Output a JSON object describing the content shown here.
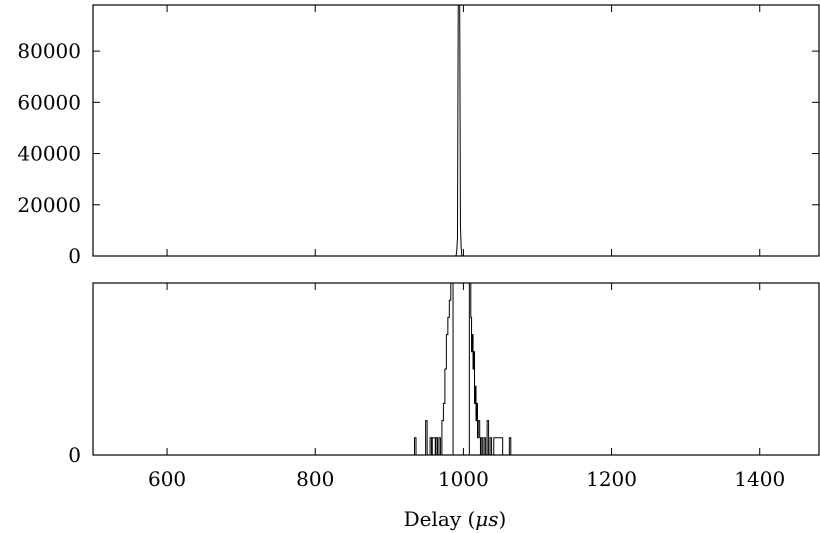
{
  "chart_data": [
    {
      "type": "line",
      "panel": "top",
      "title": "",
      "xlabel": "",
      "ylabel": "",
      "xlim": [
        500,
        1480
      ],
      "ylim": [
        0,
        98000
      ],
      "yticks": [
        0,
        20000,
        40000,
        60000,
        80000
      ],
      "ytick_labels": [
        "0",
        "20000",
        "40000",
        "60000",
        "80000"
      ],
      "xticks": [
        600,
        800,
        1000,
        1200,
        1400
      ],
      "xtick_labels": [],
      "grid": false,
      "series": [
        {
          "x": [
            500,
            990,
            991,
            992,
            993,
            994,
            995,
            996,
            997,
            998,
            1480
          ],
          "y": [
            0,
            0,
            2000,
            7000,
            98000,
            98000,
            98000,
            12000,
            3000,
            0,
            0
          ]
        }
      ]
    },
    {
      "type": "line",
      "panel": "bottom",
      "title": "",
      "xlabel": "Delay ($\\mu s$)",
      "xlabel_text": "Delay (",
      "xlabel_symbol": "μs",
      "xlabel_close": ")",
      "ylabel": "",
      "xlim": [
        500,
        1480
      ],
      "ylim": [
        0,
        10
      ],
      "yticks": [
        0
      ],
      "ytick_labels": [
        "0"
      ],
      "xticks": [
        600,
        800,
        1000,
        1200,
        1400
      ],
      "xtick_labels": [
        "600",
        "800",
        "1000",
        "1200",
        "1400"
      ],
      "grid": false,
      "series": [
        {
          "x": [
            500,
            934,
            934,
            936,
            936,
            949,
            949,
            951,
            951,
            955,
            955,
            957,
            957,
            958,
            958,
            962,
            962,
            963,
            963,
            965,
            965,
            967,
            967,
            969,
            969,
            971,
            971,
            973,
            973,
            975,
            975,
            977,
            977,
            979,
            979,
            981,
            981,
            983,
            983,
            986,
            986,
            1008,
            1008,
            1010,
            1010,
            1011,
            1011,
            1012,
            1012,
            1013,
            1013,
            1014,
            1014,
            1015,
            1015,
            1016,
            1016,
            1017,
            1017,
            1018,
            1018,
            1019,
            1019,
            1020,
            1020,
            1022,
            1022,
            1023,
            1023,
            1024,
            1024,
            1026,
            1026,
            1028,
            1028,
            1030,
            1030,
            1032,
            1032,
            1034,
            1034,
            1036,
            1036,
            1038,
            1038,
            1041,
            1041,
            1044,
            1044,
            1053,
            1053,
            1062,
            1062,
            1064,
            1064,
            1480
          ],
          "y": [
            0,
            0,
            1,
            1,
            0,
            0,
            2,
            2,
            0,
            0,
            1,
            1,
            0,
            0,
            1,
            1,
            0,
            0,
            1,
            1,
            0,
            0,
            1,
            1,
            0,
            0,
            2,
            2,
            3,
            3,
            5,
            5,
            7,
            7,
            8,
            8,
            9,
            9,
            10,
            10,
            0,
            0,
            10,
            10,
            8,
            8,
            6,
            6,
            7,
            7,
            5,
            5,
            6,
            6,
            3,
            3,
            4,
            4,
            2,
            2,
            3,
            3,
            1,
            1,
            2,
            2,
            1,
            1,
            0,
            0,
            1,
            1,
            0,
            0,
            1,
            1,
            0,
            0,
            2,
            2,
            0,
            0,
            1,
            1,
            0,
            0,
            1,
            1,
            1,
            1,
            0,
            0,
            1,
            1,
            0,
            0
          ]
        }
      ]
    }
  ]
}
